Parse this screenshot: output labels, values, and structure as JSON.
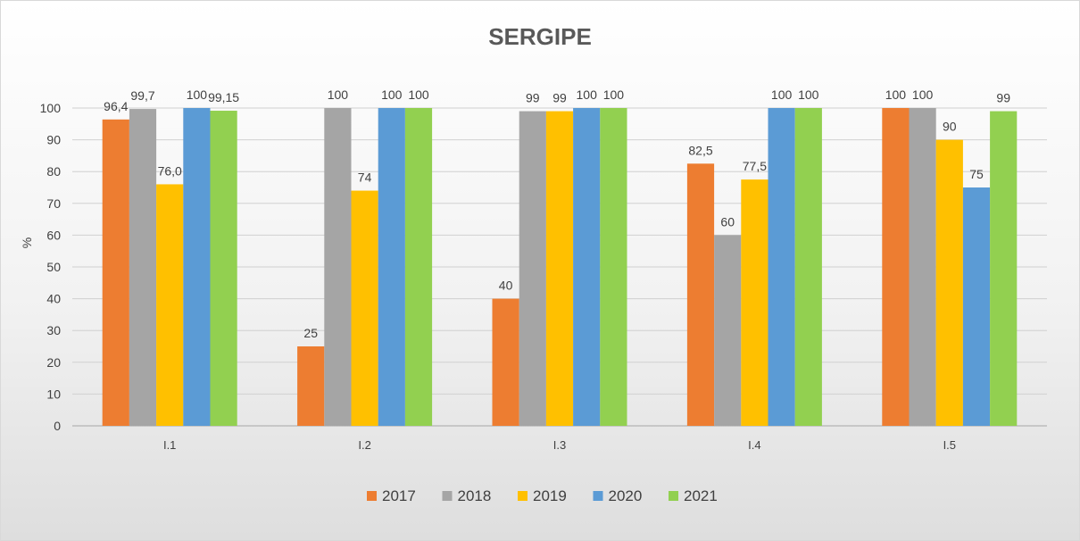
{
  "chart_data": {
    "type": "bar",
    "title": "SERGIPE",
    "ylabel": "%",
    "xlabel": "",
    "ylim": [
      0,
      100
    ],
    "yticks": [
      0,
      10,
      20,
      30,
      40,
      50,
      60,
      70,
      80,
      90,
      100
    ],
    "categories": [
      "I.1",
      "I.2",
      "I.3",
      "I.4",
      "I.5"
    ],
    "legend_position": "bottom",
    "grid": true,
    "series": [
      {
        "name": "2017",
        "color": "#ED7D31",
        "values": [
          96.4,
          25,
          40,
          82.5,
          100
        ],
        "labels": [
          "96,4",
          "25",
          "40",
          "82,5",
          "100"
        ]
      },
      {
        "name": "2018",
        "color": "#A5A5A5",
        "values": [
          99.7,
          100,
          99,
          60,
          100
        ],
        "labels": [
          "99,7",
          "100",
          "99",
          "60",
          "100"
        ]
      },
      {
        "name": "2019",
        "color": "#FFC000",
        "values": [
          76.0,
          74,
          99,
          77.5,
          90
        ],
        "labels": [
          "76,0",
          "74",
          "99",
          "77,5",
          "90"
        ]
      },
      {
        "name": "2020",
        "color": "#5B9BD5",
        "values": [
          100,
          100,
          100,
          100,
          75
        ],
        "labels": [
          "100",
          "100",
          "100",
          "100",
          "75"
        ]
      },
      {
        "name": "2021",
        "color": "#92D050",
        "values": [
          99.15,
          100,
          100,
          100,
          99
        ],
        "labels": [
          "99,15",
          "100",
          "100",
          "100",
          "99"
        ]
      }
    ]
  }
}
